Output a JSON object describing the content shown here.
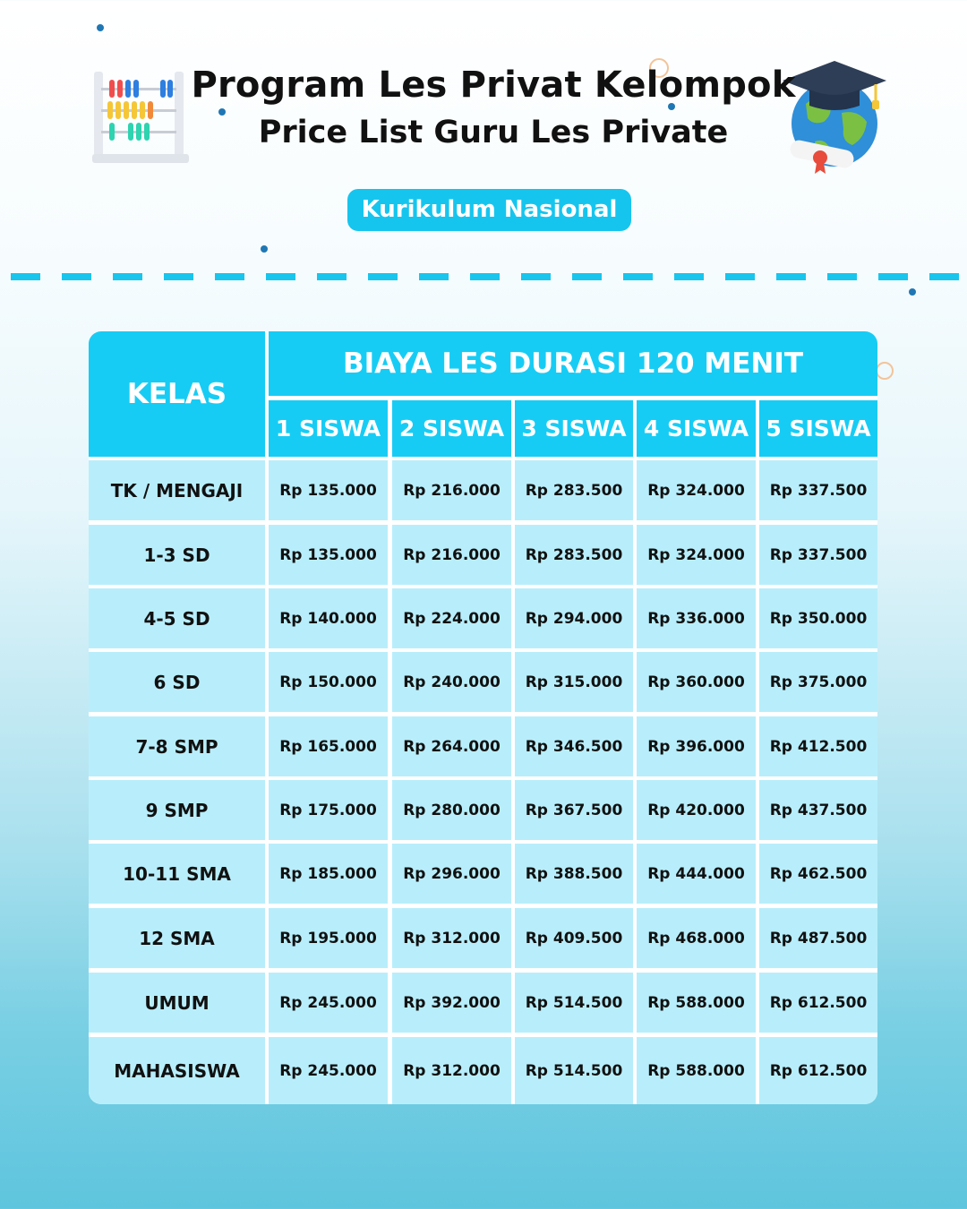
{
  "header": {
    "title": "Program Les Privat Kelompok",
    "subtitle": "Price List Guru Les Private",
    "badge": "Kurikulum Nasional"
  },
  "decor": {
    "left_icon": "abacus-icon",
    "right_icon": "graduation-globe-icon",
    "accent_color": "#16c5ee",
    "dot_color": "#1f77b4"
  },
  "table": {
    "kelas_header": "KELAS",
    "group_header": "BIAYA LES DURASI 120 MENIT",
    "columns": [
      "1 SISWA",
      "2 SISWA",
      "3 SISWA",
      "4 SISWA",
      "5 SISWA"
    ],
    "rows": [
      {
        "kelas": "TK / MENGAJI",
        "prices": [
          "Rp 135.000",
          "Rp 216.000",
          "Rp 283.500",
          "Rp 324.000",
          "Rp 337.500"
        ]
      },
      {
        "kelas": "1-3 SD",
        "prices": [
          "Rp 135.000",
          "Rp 216.000",
          "Rp 283.500",
          "Rp 324.000",
          "Rp 337.500"
        ]
      },
      {
        "kelas": "4-5 SD",
        "prices": [
          "Rp 140.000",
          "Rp 224.000",
          "Rp 294.000",
          "Rp 336.000",
          "Rp 350.000"
        ]
      },
      {
        "kelas": "6 SD",
        "prices": [
          "Rp 150.000",
          "Rp 240.000",
          "Rp 315.000",
          "Rp 360.000",
          "Rp 375.000"
        ]
      },
      {
        "kelas": "7-8 SMP",
        "prices": [
          "Rp 165.000",
          "Rp 264.000",
          "Rp 346.500",
          "Rp 396.000",
          "Rp 412.500"
        ]
      },
      {
        "kelas": "9 SMP",
        "prices": [
          "Rp 175.000",
          "Rp 280.000",
          "Rp 367.500",
          "Rp 420.000",
          "Rp 437.500"
        ]
      },
      {
        "kelas": "10-11 SMA",
        "prices": [
          "Rp 185.000",
          "Rp 296.000",
          "Rp 388.500",
          "Rp 444.000",
          "Rp 462.500"
        ]
      },
      {
        "kelas": "12 SMA",
        "prices": [
          "Rp 195.000",
          "Rp 312.000",
          "Rp 409.500",
          "Rp 468.000",
          "Rp 487.500"
        ]
      },
      {
        "kelas": "UMUM",
        "prices": [
          "Rp 245.000",
          "Rp 392.000",
          "Rp 514.500",
          "Rp 588.000",
          "Rp 612.500"
        ]
      },
      {
        "kelas": "MAHASISWA",
        "prices": [
          "Rp 245.000",
          "Rp 312.000",
          "Rp 514.500",
          "Rp 588.000",
          "Rp 612.500"
        ]
      }
    ]
  }
}
